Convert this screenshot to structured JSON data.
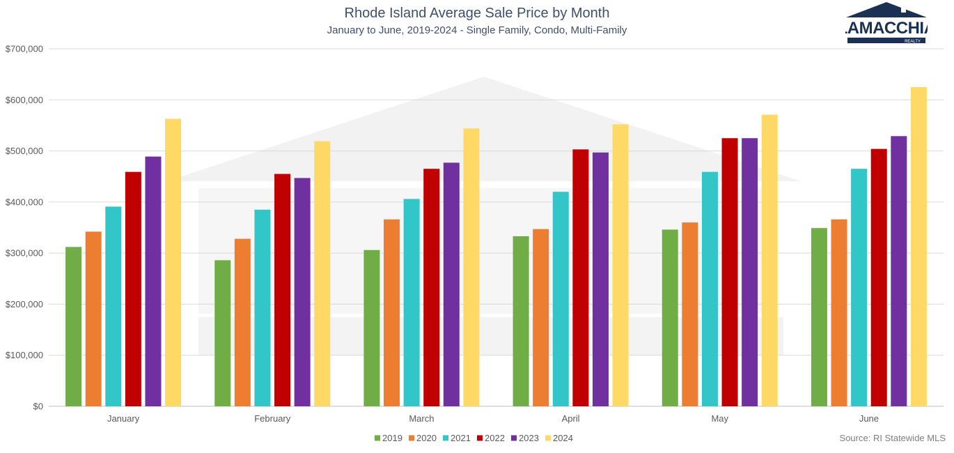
{
  "brand": {
    "name": "LAMACCHIA",
    "subname": "REALTY",
    "navy": "#1b3154"
  },
  "source_note": "Source: RI Statewide MLS",
  "chart_data": {
    "type": "bar",
    "title": "Rhode Island Average Sale Price by Month",
    "subtitle": "January to June, 2019-2024 - Single Family, Condo, Multi-Family",
    "xlabel": "",
    "ylabel": "",
    "ylim": [
      0,
      700000
    ],
    "yticks": [
      0,
      100000,
      200000,
      300000,
      400000,
      500000,
      600000,
      700000
    ],
    "ytick_labels": [
      "$0",
      "$100,000",
      "$200,000",
      "$300,000",
      "$400,000",
      "$500,000",
      "$600,000",
      "$700,000"
    ],
    "grid": true,
    "legend_position": "bottom",
    "categories": [
      "January",
      "February",
      "March",
      "April",
      "May",
      "June"
    ],
    "series": [
      {
        "name": "2019",
        "color": "#70ad47",
        "values": [
          312000,
          286000,
          306000,
          333000,
          346000,
          349000
        ]
      },
      {
        "name": "2020",
        "color": "#ed7d31",
        "values": [
          342000,
          328000,
          366000,
          347000,
          360000,
          366000
        ]
      },
      {
        "name": "2021",
        "color": "#33c6c9",
        "values": [
          391000,
          385000,
          406000,
          420000,
          459000,
          465000
        ]
      },
      {
        "name": "2022",
        "color": "#c00000",
        "values": [
          459000,
          455000,
          465000,
          503000,
          525000,
          504000
        ]
      },
      {
        "name": "2023",
        "color": "#7030a0",
        "values": [
          489000,
          447000,
          477000,
          497000,
          525000,
          529000
        ]
      },
      {
        "name": "2024",
        "color": "#ffd966",
        "values": [
          563000,
          519000,
          544000,
          552000,
          571000,
          625000
        ]
      }
    ]
  }
}
